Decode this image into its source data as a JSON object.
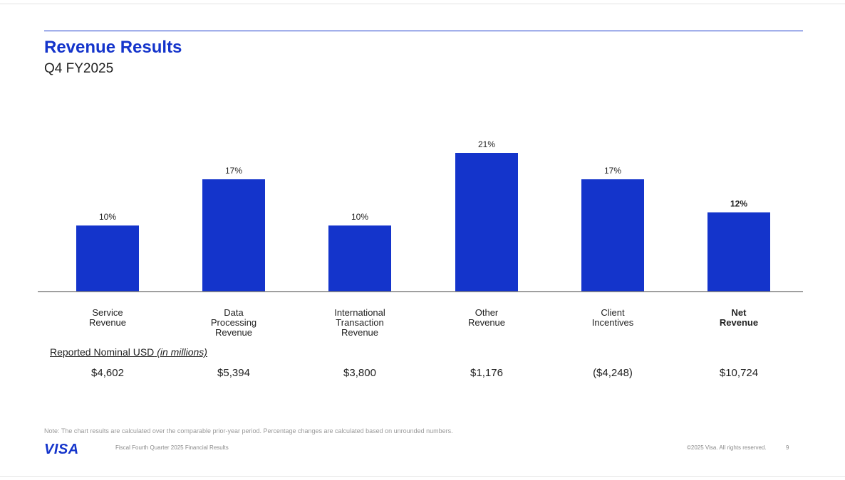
{
  "slide": {
    "title": "Revenue Results",
    "subtitle": "Q4 FY2025"
  },
  "chart_data": {
    "type": "bar",
    "categories": [
      [
        "Service",
        "Revenue"
      ],
      [
        "Data",
        "Processing",
        "Revenue"
      ],
      [
        "International",
        "Transaction",
        "Revenue"
      ],
      [
        "Other",
        "Revenue"
      ],
      [
        "Client",
        "Incentives"
      ],
      [
        "Net",
        "Revenue"
      ]
    ],
    "values": [
      10,
      17,
      10,
      21,
      17,
      12
    ],
    "value_labels": [
      "10%",
      "17%",
      "10%",
      "21%",
      "17%",
      "12%"
    ],
    "ylim": [
      0,
      21
    ],
    "grid": false,
    "bar_color": "#1434cb",
    "emphasized_index": 5
  },
  "reported": {
    "label": "Reported Nominal USD",
    "label_suffix": "(in millions)",
    "values": [
      "$4,602",
      "$5,394",
      "$3,800",
      "$1,176",
      "($4,248)",
      "$10,724"
    ]
  },
  "footer": {
    "note": "Note: The chart results are calculated over the comparable prior-year period. Percentage changes are calculated based on unrounded numbers.",
    "logo": "VISA",
    "left_text": "Fiscal Fourth Quarter 2025 Financial Results",
    "copyright": "©2025 Visa. All rights reserved.",
    "page_number": "9"
  },
  "colors": {
    "brand_blue": "#1434cb",
    "axis": "#666666"
  }
}
